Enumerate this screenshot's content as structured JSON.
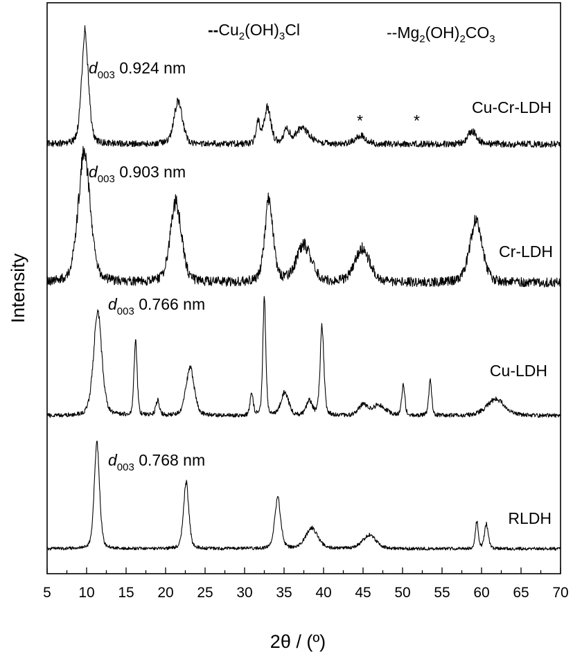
{
  "chart_data": {
    "type": "line",
    "xlabel": "2θ / (º)",
    "ylabel": "Intensity",
    "xlim": [
      5,
      70
    ],
    "xticks": [
      5,
      10,
      15,
      20,
      25,
      30,
      35,
      40,
      45,
      50,
      55,
      60,
      65,
      70
    ],
    "grid": false,
    "y_ticks_shown": false,
    "legend": [
      {
        "marker": "--",
        "label": "Cu2(OH)3Cl"
      },
      {
        "marker": "--",
        "label": "Mg2(OH)2CO3"
      }
    ],
    "series": [
      {
        "name": "Cu-Cr-LDH",
        "baseline": 1.0,
        "noise": 0.045,
        "peaks": [
          {
            "x": 9.8,
            "h": 1.55,
            "w": 0.45
          },
          {
            "x": 21.6,
            "h": 0.6,
            "w": 0.55
          },
          {
            "x": 31.7,
            "h": 0.3,
            "w": 0.25
          },
          {
            "x": 32.9,
            "h": 0.5,
            "w": 0.45
          },
          {
            "x": 35.3,
            "h": 0.18,
            "w": 0.4
          },
          {
            "x": 37.3,
            "h": 0.22,
            "w": 0.9
          },
          {
            "x": 44.7,
            "h": 0.12,
            "w": 0.7
          },
          {
            "x": 58.8,
            "h": 0.18,
            "w": 0.6
          }
        ],
        "annotation": {
          "d_label": "003",
          "value": "0.924 nm"
        },
        "markers": [
          {
            "x": 44.6,
            "symbol": "*"
          },
          {
            "x": 51.8,
            "symbol": "*"
          }
        ]
      },
      {
        "name": "Cr-LDH",
        "baseline": 0.0,
        "noise": 0.07,
        "peaks": [
          {
            "x": 9.7,
            "h": 1.95,
            "w": 0.8
          },
          {
            "x": 21.3,
            "h": 1.2,
            "w": 0.75
          },
          {
            "x": 33.1,
            "h": 1.25,
            "w": 0.55
          },
          {
            "x": 37.5,
            "h": 0.55,
            "w": 1.0
          },
          {
            "x": 44.9,
            "h": 0.5,
            "w": 1.0
          },
          {
            "x": 59.3,
            "h": 0.95,
            "w": 0.8
          }
        ],
        "annotation": {
          "d_label": "003",
          "value": "0.903 nm"
        }
      },
      {
        "name": "Cu-LDH",
        "baseline": 0.0,
        "noise": 0.05,
        "peaks": [
          {
            "x": 11.4,
            "h": 2.5,
            "w": 0.55
          },
          {
            "x": 16.2,
            "h": 1.85,
            "w": 0.2
          },
          {
            "x": 19.0,
            "h": 0.35,
            "w": 0.25
          },
          {
            "x": 23.1,
            "h": 1.15,
            "w": 0.55
          },
          {
            "x": 30.9,
            "h": 0.55,
            "w": 0.2
          },
          {
            "x": 32.5,
            "h": 2.8,
            "w": 0.2
          },
          {
            "x": 35.1,
            "h": 0.55,
            "w": 0.5
          },
          {
            "x": 38.2,
            "h": 0.35,
            "w": 0.4
          },
          {
            "x": 39.8,
            "h": 2.15,
            "w": 0.25
          },
          {
            "x": 45.0,
            "h": 0.25,
            "w": 0.6
          },
          {
            "x": 47.0,
            "h": 0.25,
            "w": 0.9
          },
          {
            "x": 50.1,
            "h": 0.75,
            "w": 0.2
          },
          {
            "x": 53.5,
            "h": 0.85,
            "w": 0.2
          },
          {
            "x": 61.8,
            "h": 0.4,
            "w": 1.2
          }
        ],
        "annotation": {
          "d_label": "003",
          "value": "0.766 nm"
        }
      },
      {
        "name": "RLDH",
        "baseline": 0.0,
        "noise": 0.035,
        "peaks": [
          {
            "x": 11.3,
            "h": 2.35,
            "w": 0.35
          },
          {
            "x": 22.6,
            "h": 1.45,
            "w": 0.35
          },
          {
            "x": 34.2,
            "h": 1.1,
            "w": 0.4
          },
          {
            "x": 38.5,
            "h": 0.45,
            "w": 0.8
          },
          {
            "x": 45.8,
            "h": 0.3,
            "w": 0.9
          },
          {
            "x": 59.4,
            "h": 0.6,
            "w": 0.2
          },
          {
            "x": 60.6,
            "h": 0.55,
            "w": 0.25
          }
        ],
        "annotation": {
          "d_label": "003",
          "value": "0.768 nm"
        }
      }
    ]
  },
  "text": {
    "legend1_text": "Cu",
    "legend1_sub1": "2",
    "legend1_mid": "(OH)",
    "legend1_sub2": "3",
    "legend1_end": "Cl",
    "legend2_text": "Mg",
    "legend2_sub1": "2",
    "legend2_mid": "(OH)",
    "legend2_sub2": "2",
    "legend2_mid2": "CO",
    "legend2_sub3": "3",
    "d_letter": "d"
  }
}
